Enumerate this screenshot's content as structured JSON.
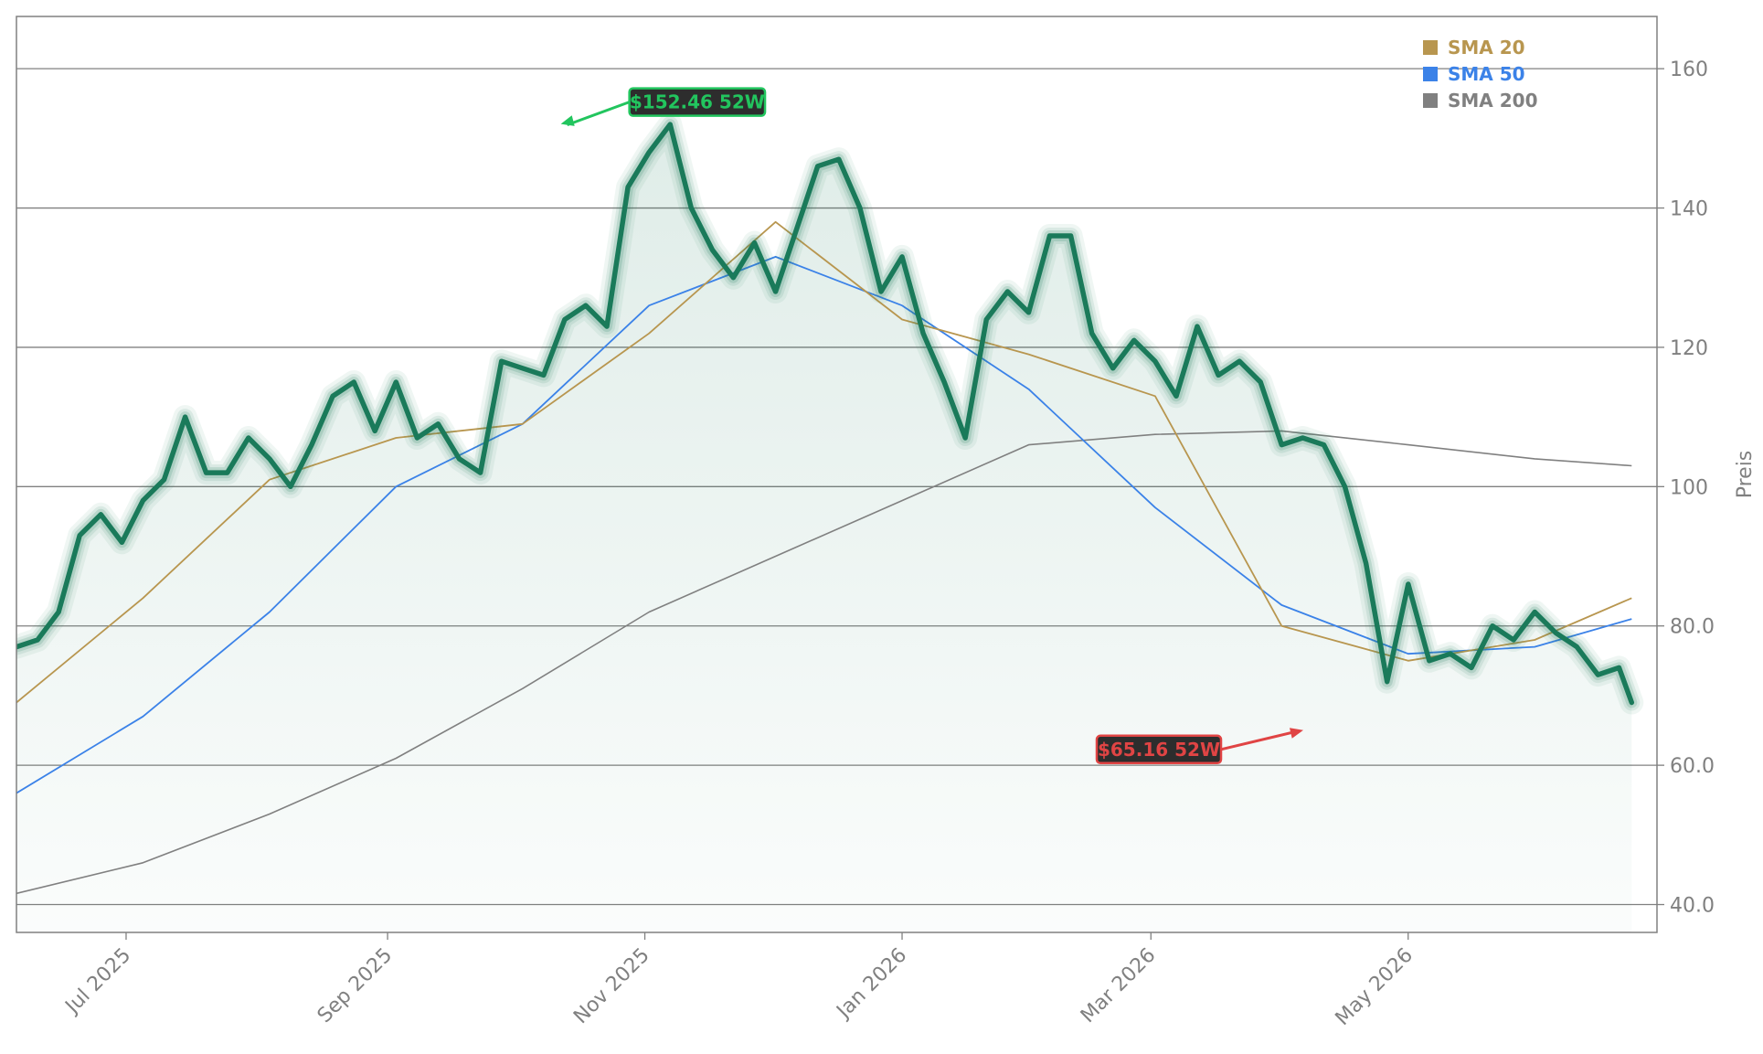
{
  "chart_data": {
    "type": "line",
    "title": "",
    "xlabel": "",
    "ylabel": "Preis",
    "ylim": [
      36,
      167.5
    ],
    "xlim": [
      "2025-06-05",
      "2026-06-29"
    ],
    "y_ticks": [
      40,
      60,
      80,
      100,
      120,
      140,
      160
    ],
    "y_tick_labels": [
      "40.0",
      "60.0",
      "80.0",
      "100",
      "120",
      "140",
      "160"
    ],
    "x_ticks": [
      "2025-07-01",
      "2025-09-01",
      "2025-11-01",
      "2026-01-01",
      "2026-03-01",
      "2026-05-01"
    ],
    "x_tick_labels": [
      "Jul 2025",
      "Sep 2025",
      "Nov 2025",
      "Jan 2026",
      "Mar 2026",
      "May 2026"
    ],
    "grid": "horizontal",
    "legend_position": "top-right",
    "colors": {
      "price": "#1a7a5a",
      "sma20": "#b8964f",
      "sma50": "#3b82e8",
      "sma200": "#808080",
      "high_annotation": "#22c55e",
      "low_annotation": "#e04444"
    },
    "series": [
      {
        "name": "",
        "role": "price",
        "x": [
          "2025-06-05",
          "2025-06-10",
          "2025-06-15",
          "2025-06-20",
          "2025-06-25",
          "2025-06-30",
          "2025-07-05",
          "2025-07-10",
          "2025-07-15",
          "2025-07-20",
          "2025-07-25",
          "2025-07-30",
          "2025-08-04",
          "2025-08-09",
          "2025-08-14",
          "2025-08-19",
          "2025-08-24",
          "2025-08-29",
          "2025-09-03",
          "2025-09-08",
          "2025-09-13",
          "2025-09-18",
          "2025-09-23",
          "2025-09-28",
          "2025-10-03",
          "2025-10-08",
          "2025-10-13",
          "2025-10-18",
          "2025-10-23",
          "2025-10-28",
          "2025-11-02",
          "2025-11-07",
          "2025-11-12",
          "2025-11-17",
          "2025-11-22",
          "2025-11-27",
          "2025-12-02",
          "2025-12-07",
          "2025-12-12",
          "2025-12-17",
          "2025-12-22",
          "2025-12-27",
          "2026-01-01",
          "2026-01-06",
          "2026-01-11",
          "2026-01-16",
          "2026-01-21",
          "2026-01-26",
          "2026-01-31",
          "2026-02-05",
          "2026-02-10",
          "2026-02-15",
          "2026-02-20",
          "2026-02-25",
          "2026-03-02",
          "2026-03-07",
          "2026-03-12",
          "2026-03-17",
          "2026-03-22",
          "2026-03-27",
          "2026-04-01",
          "2026-04-06",
          "2026-04-11",
          "2026-04-16",
          "2026-04-21",
          "2026-04-26",
          "2026-05-01",
          "2026-05-06",
          "2026-05-11",
          "2026-05-16",
          "2026-05-21",
          "2026-05-26",
          "2026-05-31",
          "2026-06-05",
          "2026-06-10",
          "2026-06-15",
          "2026-06-20",
          "2026-06-23"
        ],
        "values": [
          77,
          78,
          82,
          93,
          96,
          92,
          98,
          101,
          110,
          102,
          102,
          107,
          104,
          100,
          106,
          113,
          115,
          108,
          115,
          107,
          109,
          104,
          102,
          118,
          117,
          116,
          124,
          126,
          123,
          143,
          148,
          152,
          140,
          134,
          130,
          135,
          128,
          137,
          146,
          147,
          140,
          128,
          133,
          122,
          115,
          107,
          124,
          128,
          125,
          136,
          136,
          122,
          117,
          121,
          118,
          113,
          123,
          116,
          118,
          115,
          106,
          107,
          106,
          100,
          89,
          72,
          86,
          75,
          76,
          74,
          80,
          78,
          82,
          79,
          77,
          73,
          74,
          69
        ]
      },
      {
        "name": "SMA 20",
        "role": "sma20",
        "x": [
          "2025-06-05",
          "2025-07-05",
          "2025-08-04",
          "2025-09-03",
          "2025-10-03",
          "2025-11-02",
          "2025-12-02",
          "2026-01-01",
          "2026-01-31",
          "2026-03-02",
          "2026-04-01",
          "2026-05-01",
          "2026-05-31",
          "2026-06-23"
        ],
        "values": [
          69,
          84,
          101,
          107,
          109,
          122,
          138,
          124,
          119,
          113,
          80,
          75,
          78,
          84
        ]
      },
      {
        "name": "SMA 50",
        "role": "sma50",
        "x": [
          "2025-06-05",
          "2025-07-05",
          "2025-08-04",
          "2025-09-03",
          "2025-10-03",
          "2025-11-02",
          "2025-12-02",
          "2026-01-01",
          "2026-01-31",
          "2026-03-02",
          "2026-04-01",
          "2026-05-01",
          "2026-05-31",
          "2026-06-23"
        ],
        "values": [
          56,
          67,
          82,
          100,
          109,
          126,
          133,
          126,
          114,
          97,
          83,
          76,
          77,
          81
        ]
      },
      {
        "name": "SMA 200",
        "role": "sma200",
        "x": [
          "2025-06-05",
          "2025-07-05",
          "2025-08-04",
          "2025-09-03",
          "2025-10-03",
          "2025-11-02",
          "2025-12-02",
          "2026-01-01",
          "2026-01-31",
          "2026-03-02",
          "2026-04-01",
          "2026-05-01",
          "2026-05-31",
          "2026-06-23"
        ],
        "values": [
          41.6,
          46,
          53,
          61,
          71,
          82,
          90,
          98,
          106,
          107.5,
          108,
          106,
          104,
          103
        ]
      }
    ],
    "annotations": [
      {
        "label": "$152.46 52W",
        "x": "2025-10-11",
        "y": 152.46,
        "kind": "high"
      },
      {
        "label": "$65.16 52W",
        "x": "2026-04-07",
        "y": 65.16,
        "kind": "low"
      }
    ]
  }
}
